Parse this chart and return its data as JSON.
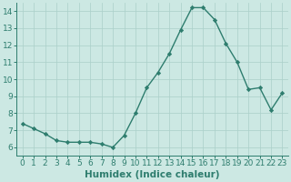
{
  "x": [
    0,
    1,
    2,
    3,
    4,
    5,
    6,
    7,
    8,
    9,
    10,
    11,
    12,
    13,
    14,
    15,
    16,
    17,
    18,
    19,
    20,
    21,
    22,
    23
  ],
  "y": [
    7.4,
    7.1,
    6.8,
    6.4,
    6.3,
    6.3,
    6.3,
    6.2,
    6.0,
    6.7,
    8.0,
    9.5,
    10.4,
    11.5,
    12.9,
    14.2,
    14.2,
    13.5,
    12.1,
    11.0,
    9.4,
    9.5,
    8.2,
    9.2
  ],
  "line_color": "#2e7d6e",
  "bg_color": "#cce8e3",
  "grid_color": "#aacfc9",
  "xlabel": "Humidex (Indice chaleur)",
  "xlim": [
    -0.5,
    23.5
  ],
  "ylim": [
    5.5,
    14.5
  ],
  "yticks": [
    6,
    7,
    8,
    9,
    10,
    11,
    12,
    13,
    14
  ],
  "xticks": [
    0,
    1,
    2,
    3,
    4,
    5,
    6,
    7,
    8,
    9,
    10,
    11,
    12,
    13,
    14,
    15,
    16,
    17,
    18,
    19,
    20,
    21,
    22,
    23
  ],
  "marker": "D",
  "markersize": 2.2,
  "linewidth": 1.0,
  "xlabel_fontsize": 7.5,
  "tick_fontsize": 6.5
}
